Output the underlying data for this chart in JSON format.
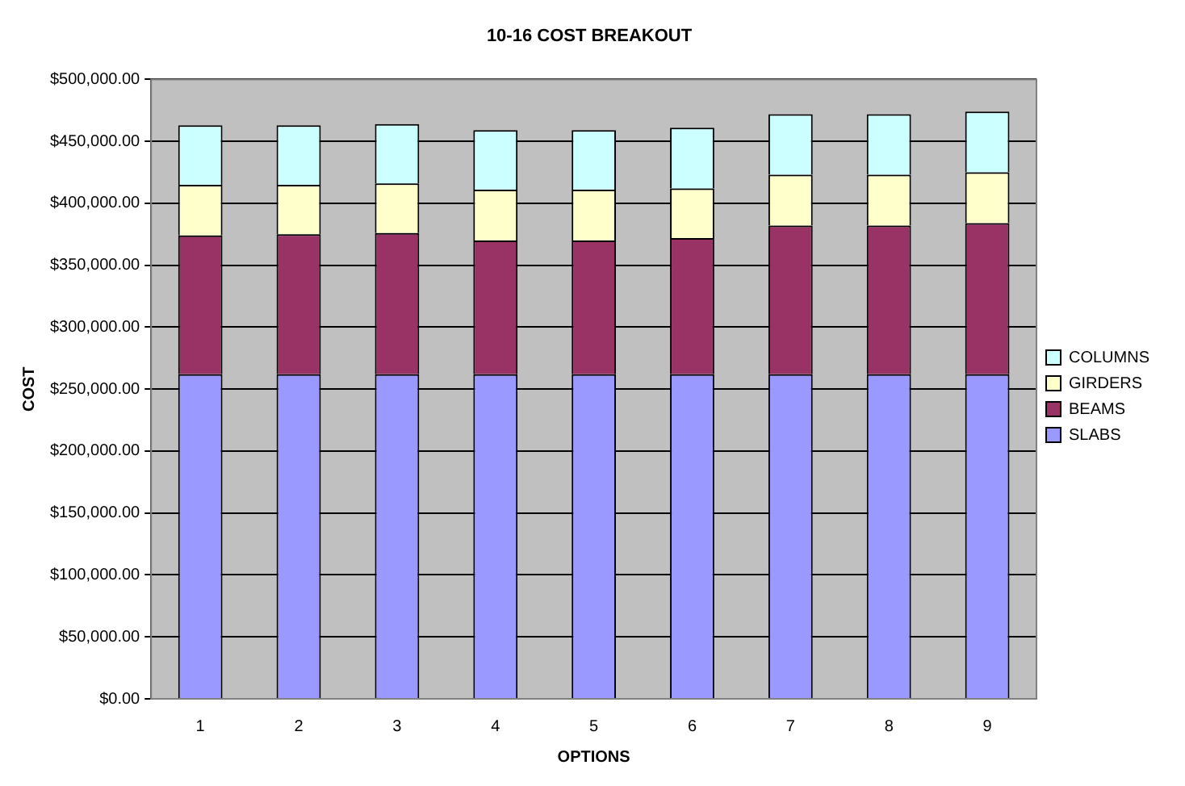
{
  "chart_data": {
    "type": "bar",
    "title": "10-16 COST BREAKOUT",
    "xlabel": "OPTIONS",
    "ylabel": "COST",
    "categories": [
      "1",
      "2",
      "3",
      "4",
      "5",
      "6",
      "7",
      "8",
      "9"
    ],
    "stacked": true,
    "series": [
      {
        "name": "SLABS",
        "color": "#9999ff",
        "values": [
          262000,
          262000,
          262000,
          262000,
          262000,
          262000,
          262000,
          262000,
          262000
        ]
      },
      {
        "name": "BEAMS",
        "color": "#993366",
        "values": [
          112000,
          113000,
          114000,
          108000,
          108000,
          110000,
          120000,
          120000,
          122000
        ]
      },
      {
        "name": "GIRDERS",
        "color": "#ffffcc",
        "values": [
          41000,
          40000,
          40000,
          41000,
          41000,
          40000,
          41000,
          41000,
          41000
        ]
      },
      {
        "name": "COLUMNS",
        "color": "#ccffff",
        "values": [
          48000,
          48000,
          48000,
          48000,
          48000,
          49000,
          49000,
          49000,
          49000
        ]
      }
    ],
    "ylim": [
      0,
      500000
    ],
    "yticks": [
      {
        "value": 0,
        "label": "$0.00"
      },
      {
        "value": 50000,
        "label": "$50,000.00"
      },
      {
        "value": 100000,
        "label": "$100,000.00"
      },
      {
        "value": 150000,
        "label": "$150,000.00"
      },
      {
        "value": 200000,
        "label": "$200,000.00"
      },
      {
        "value": 250000,
        "label": "$250,000.00"
      },
      {
        "value": 300000,
        "label": "$300,000.00"
      },
      {
        "value": 350000,
        "label": "$350,000.00"
      },
      {
        "value": 400000,
        "label": "$400,000.00"
      },
      {
        "value": 450000,
        "label": "$450,000.00"
      },
      {
        "value": 500000,
        "label": "$500,000.00"
      }
    ],
    "grid": "y",
    "legend": "right"
  }
}
